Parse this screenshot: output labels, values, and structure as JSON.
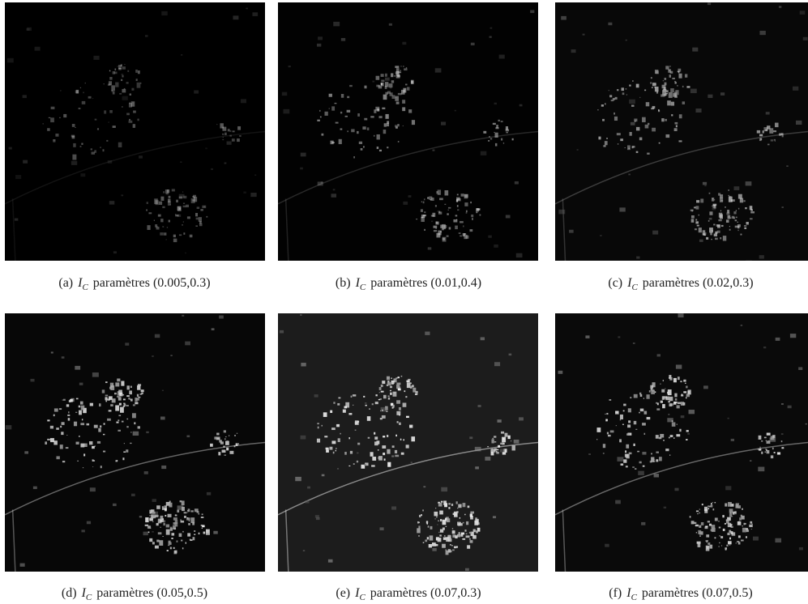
{
  "figure": {
    "panels": [
      {
        "label": "(a)",
        "symbol": "I",
        "subscript": "C",
        "text": "paramètres (0.005,0.3)"
      },
      {
        "label": "(b)",
        "symbol": "I",
        "subscript": "C",
        "text": "paramètres (0.01,0.4)"
      },
      {
        "label": "(c)",
        "symbol": "I",
        "subscript": "C",
        "text": "paramètres (0.02,0.3)"
      },
      {
        "label": "(d)",
        "symbol": "I",
        "subscript": "C",
        "text": "paramètres (0.05,0.5)"
      },
      {
        "label": "(e)",
        "symbol": "I",
        "subscript": "C",
        "text": "paramètres (0.07,0.3)"
      },
      {
        "label": "(f)",
        "symbol": "I",
        "subscript": "C",
        "text": "paramètres (0.07,0.5)"
      }
    ]
  }
}
